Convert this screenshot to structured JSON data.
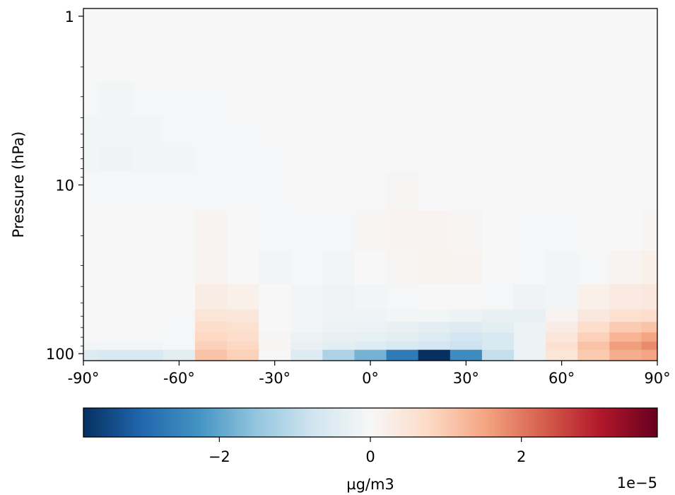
{
  "chart_data": {
    "type": "heatmap",
    "title": "",
    "xlabel": "",
    "ylabel": "Pressure (hPa)",
    "x_range": [
      -90,
      90
    ],
    "x_ticks": [
      -90,
      -60,
      -30,
      0,
      30,
      60,
      90
    ],
    "x_tick_labels": [
      "-90°",
      "-60°",
      "-30°",
      "0°",
      "30°",
      "60°",
      "90°"
    ],
    "y_scale": "log",
    "y_inverted": true,
    "y_range": [
      0.9,
      110
    ],
    "y_ticks": [
      1,
      10,
      100
    ],
    "y_tick_labels": [
      "1",
      "10",
      "100"
    ],
    "colormap": "RdBu_r",
    "colormap_stops": [
      "#053061",
      "#2166ac",
      "#4393c3",
      "#92c5de",
      "#d1e5f0",
      "#f7f7f7",
      "#fddbc7",
      "#f4a582",
      "#d6604d",
      "#b2182b",
      "#67001f"
    ],
    "color_range": [
      -3.8e-05,
      3.8e-05
    ],
    "colorbar": {
      "label": "µg/m3",
      "ticks": [
        -2,
        0,
        2
      ],
      "tick_labels": [
        "−2",
        "0",
        "2"
      ],
      "offset_text": "1e−5"
    },
    "latitudes": [
      -90,
      -80,
      -70,
      -60,
      -50,
      -40,
      -30,
      -20,
      -10,
      0,
      10,
      20,
      30,
      40,
      50,
      60,
      70,
      80,
      90
    ],
    "pressure_levels": [
      1,
      2,
      3,
      5,
      7,
      10,
      20,
      30,
      50,
      60,
      70,
      80,
      90,
      100
    ],
    "values_1e-5": [
      [
        0.0,
        0.0,
        0.0,
        0.0,
        0.0,
        0.0,
        0.0,
        0.0,
        0.0,
        0.0,
        0.0,
        0.0,
        0.0,
        0.0,
        0.0,
        0.0,
        0.0,
        0.0,
        0.0
      ],
      [
        0.0,
        0.0,
        0.0,
        0.0,
        0.0,
        0.0,
        0.0,
        0.0,
        0.0,
        0.0,
        0.0,
        0.0,
        0.0,
        0.0,
        0.0,
        0.0,
        0.0,
        0.0,
        0.0
      ],
      [
        -0.05,
        -0.1,
        -0.05,
        -0.05,
        -0.05,
        0.0,
        0.0,
        0.0,
        0.0,
        0.0,
        0.0,
        0.0,
        0.0,
        0.0,
        0.0,
        0.0,
        0.0,
        0.0,
        0.0
      ],
      [
        -0.1,
        -0.1,
        -0.1,
        -0.05,
        -0.05,
        -0.05,
        0.0,
        0.0,
        0.0,
        0.0,
        0.0,
        0.0,
        0.0,
        0.0,
        0.0,
        0.0,
        0.0,
        0.0,
        0.0
      ],
      [
        -0.1,
        -0.15,
        -0.1,
        -0.1,
        -0.05,
        -0.05,
        -0.05,
        0.0,
        0.0,
        0.0,
        0.0,
        0.0,
        0.0,
        0.0,
        0.0,
        0.0,
        0.0,
        0.0,
        0.0
      ],
      [
        -0.05,
        -0.05,
        -0.05,
        -0.05,
        -0.05,
        -0.05,
        -0.05,
        0.0,
        0.0,
        0.0,
        0.05,
        0.0,
        0.0,
        0.0,
        0.0,
        0.0,
        0.0,
        0.0,
        0.0
      ],
      [
        0.0,
        0.0,
        0.0,
        0.0,
        0.1,
        0.0,
        -0.05,
        -0.05,
        -0.05,
        0.05,
        0.1,
        0.1,
        0.05,
        0.0,
        -0.05,
        -0.05,
        0.0,
        0.0,
        0.05
      ],
      [
        0.0,
        0.0,
        0.0,
        0.0,
        0.1,
        0.0,
        -0.1,
        -0.05,
        -0.1,
        0.0,
        0.05,
        0.15,
        0.1,
        0.0,
        -0.05,
        -0.1,
        -0.05,
        0.1,
        0.2
      ],
      [
        0.0,
        0.0,
        0.0,
        0.0,
        0.3,
        0.2,
        0.0,
        -0.1,
        -0.15,
        -0.1,
        -0.05,
        0.0,
        0.0,
        -0.05,
        -0.15,
        -0.1,
        0.2,
        0.35,
        0.4
      ],
      [
        0.0,
        0.0,
        0.0,
        -0.05,
        0.5,
        0.45,
        0.0,
        -0.1,
        -0.15,
        -0.15,
        -0.1,
        -0.1,
        -0.2,
        -0.3,
        -0.3,
        0.1,
        0.4,
        0.6,
        0.7
      ],
      [
        0.0,
        0.0,
        0.0,
        -0.05,
        0.7,
        0.6,
        0.0,
        -0.1,
        -0.2,
        -0.25,
        -0.3,
        -0.4,
        -0.5,
        -0.4,
        -0.2,
        0.3,
        0.7,
        1.0,
        1.1
      ],
      [
        0.0,
        -0.05,
        -0.05,
        -0.05,
        0.8,
        0.7,
        0.05,
        -0.2,
        -0.3,
        -0.35,
        -0.4,
        -0.55,
        -0.7,
        -0.6,
        -0.2,
        0.45,
        0.9,
        1.3,
        1.5
      ],
      [
        -0.1,
        -0.1,
        -0.1,
        -0.05,
        0.9,
        0.8,
        0.05,
        -0.3,
        -0.4,
        -0.5,
        -0.6,
        -0.7,
        -0.8,
        -0.6,
        -0.2,
        0.6,
        1.1,
        1.6,
        1.8
      ],
      [
        -0.5,
        -0.6,
        -0.6,
        -0.4,
        1.1,
        0.9,
        0.0,
        -0.5,
        -1.2,
        -1.8,
        -2.7,
        -3.8,
        -2.4,
        -0.9,
        -0.2,
        0.5,
        1.0,
        1.4,
        1.5
      ]
    ]
  }
}
